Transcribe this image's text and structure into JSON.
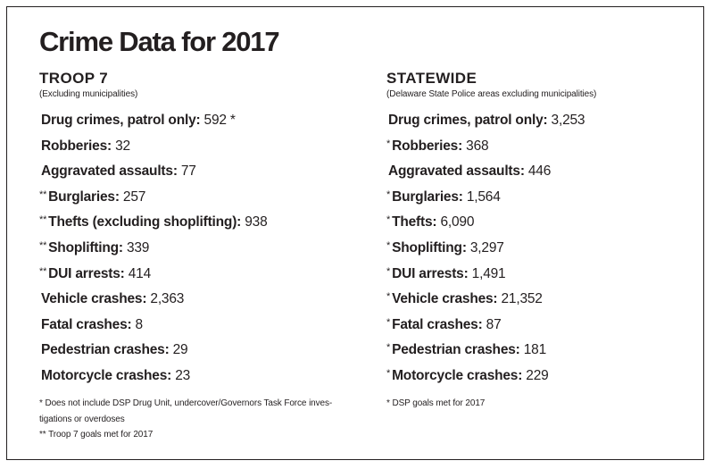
{
  "title": "Crime Data for 2017",
  "troop7": {
    "heading": "TROOP 7",
    "subheading": "(Excluding municipalities)",
    "rows": [
      {
        "mark": "",
        "label": "Drug crimes, patrol only:",
        "value": " 592 *"
      },
      {
        "mark": "",
        "label": "Robberies:",
        "value": " 32"
      },
      {
        "mark": "",
        "label": "Aggravated assaults:",
        "value": " 77"
      },
      {
        "mark": "**",
        "label": "Burglaries:",
        "value": " 257"
      },
      {
        "mark": "**",
        "label": "Thefts (excluding shoplifting):",
        "value": " 938"
      },
      {
        "mark": "**",
        "label": "Shoplifting:",
        "value": " 339"
      },
      {
        "mark": "**",
        "label": "DUI arrests:",
        "value": " 414"
      },
      {
        "mark": "",
        "label": "Vehicle crashes:",
        "value": " 2,363"
      },
      {
        "mark": "",
        "label": "Fatal crashes:",
        "value": " 8"
      },
      {
        "mark": "",
        "label": "Pedestrian crashes:",
        "value": " 29"
      },
      {
        "mark": "",
        "label": "Motorcycle crashes:",
        "value": " 23"
      }
    ],
    "footnotes": [
      "* Does not include DSP Drug Unit, undercover/Governors Task Force inves-",
      "tigations or overdoses",
      "** Troop 7 goals met for 2017"
    ]
  },
  "statewide": {
    "heading": "STATEWIDE",
    "subheading": "(Delaware State Police areas excluding municipalities)",
    "rows": [
      {
        "mark": "",
        "label": "Drug crimes, patrol only:",
        "value": " 3,253"
      },
      {
        "mark": "*",
        "label": "Robberies:",
        "value": " 368"
      },
      {
        "mark": "",
        "label": "Aggravated assaults:",
        "value": " 446"
      },
      {
        "mark": "*",
        "label": "Burglaries:",
        "value": " 1,564"
      },
      {
        "mark": "*",
        "label": "Thefts:",
        "value": " 6,090"
      },
      {
        "mark": "*",
        "label": "Shoplifting:",
        "value": " 3,297"
      },
      {
        "mark": "*",
        "label": "DUI arrests:",
        "value": " 1,491"
      },
      {
        "mark": "*",
        "label": "Vehicle crashes:",
        "value": " 21,352"
      },
      {
        "mark": "*",
        "label": "Fatal crashes:",
        "value": " 87"
      },
      {
        "mark": "*",
        "label": "Pedestrian crashes:",
        "value": " 181"
      },
      {
        "mark": "*",
        "label": "Motorcycle crashes:",
        "value": " 229"
      }
    ],
    "footnotes": [
      "* DSP goals met for 2017"
    ]
  }
}
